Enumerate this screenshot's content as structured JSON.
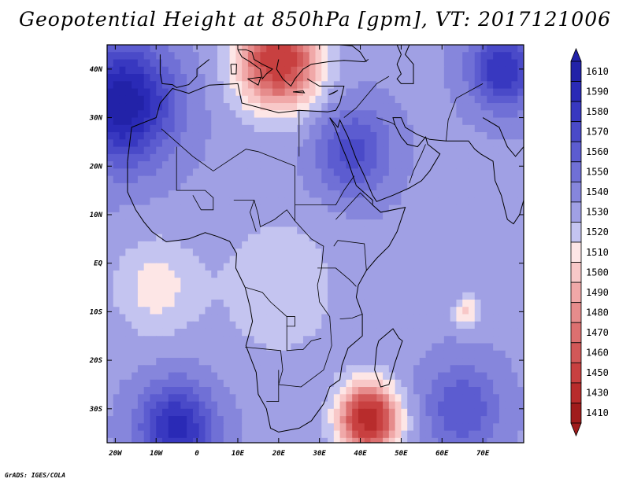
{
  "chart_data": {
    "type": "heatmap",
    "title": "Geopotential Height at 850hPa [gpm], VT: 2017121006",
    "variable": "Geopotential Height",
    "level": "850hPa",
    "units": "gpm",
    "valid_time": "2017121006",
    "xlim": [
      -22,
      80
    ],
    "ylim": [
      -37,
      45
    ],
    "x_ticks": [
      {
        "value": -20,
        "label": "20W"
      },
      {
        "value": -10,
        "label": "10W"
      },
      {
        "value": 0,
        "label": "0"
      },
      {
        "value": 10,
        "label": "10E"
      },
      {
        "value": 20,
        "label": "20E"
      },
      {
        "value": 30,
        "label": "30E"
      },
      {
        "value": 40,
        "label": "40E"
      },
      {
        "value": 50,
        "label": "50E"
      },
      {
        "value": 60,
        "label": "60E"
      },
      {
        "value": 70,
        "label": "70E"
      }
    ],
    "y_ticks": [
      {
        "value": 40,
        "label": "40N"
      },
      {
        "value": 30,
        "label": "30N"
      },
      {
        "value": 20,
        "label": "20N"
      },
      {
        "value": 10,
        "label": "10N"
      },
      {
        "value": 0,
        "label": "EQ"
      },
      {
        "value": -10,
        "label": "10S"
      },
      {
        "value": -20,
        "label": "20S"
      },
      {
        "value": -30,
        "label": "30S"
      }
    ],
    "colorbar": {
      "labels_top_to_bottom": [
        "1610",
        "1590",
        "1580",
        "1570",
        "1560",
        "1550",
        "1540",
        "1530",
        "1520",
        "1510",
        "1500",
        "1490",
        "1480",
        "1470",
        "1460",
        "1450",
        "1430",
        "1410"
      ],
      "colors_top_to_bottom": [
        "#2222a8",
        "#2a2ab6",
        "#3838c0",
        "#4a4ac8",
        "#5c5cd0",
        "#7070d6",
        "#8686dc",
        "#a0a0e4",
        "#c4c4f0",
        "#fde6e6",
        "#f8c8c8",
        "#f0a8a8",
        "#e68c8c",
        "#dc7070",
        "#d25858",
        "#c84040",
        "#b82c2c",
        "#a01c1c"
      ]
    },
    "anomaly_centers": [
      {
        "lon": -18,
        "lat": 33,
        "value": 1600,
        "radius_deg": 12
      },
      {
        "lon": 20,
        "lat": 42,
        "value": 1435,
        "radius_deg": 10
      },
      {
        "lon": 38,
        "lat": 23,
        "value": 1565,
        "radius_deg": 9
      },
      {
        "lon": 75,
        "lat": 40,
        "value": 1580,
        "radius_deg": 8
      },
      {
        "lon": 42,
        "lat": -32,
        "value": 1420,
        "radius_deg": 7
      },
      {
        "lon": 20,
        "lat": -5,
        "value": 1512,
        "radius_deg": 15
      },
      {
        "lon": -10,
        "lat": -5,
        "value": 1505,
        "radius_deg": 10
      },
      {
        "lon": 66,
        "lat": -10,
        "value": 1495,
        "radius_deg": 3
      },
      {
        "lon": -5,
        "lat": -34,
        "value": 1585,
        "radius_deg": 9
      },
      {
        "lon": 65,
        "lat": -30,
        "value": 1560,
        "radius_deg": 9
      }
    ],
    "background_value": 1528,
    "contour_coastlines": true
  },
  "credit": "GrADS: IGES/COLA"
}
